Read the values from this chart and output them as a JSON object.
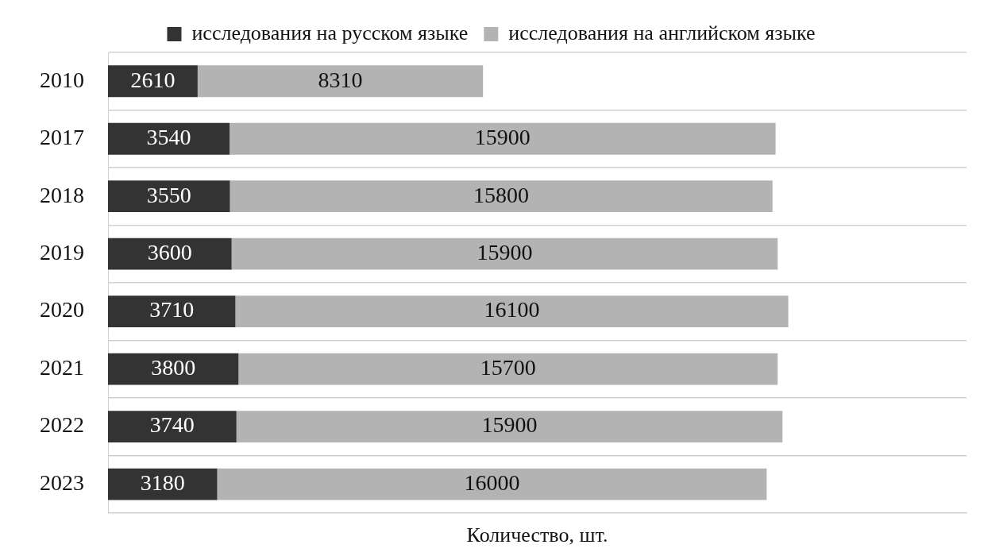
{
  "chart_data": {
    "type": "bar",
    "orientation": "horizontal",
    "stacked": true,
    "xlabel": "Количество, шт.",
    "categories": [
      "2010",
      "2017",
      "2018",
      "2019",
      "2020",
      "2021",
      "2022",
      "2023"
    ],
    "series": [
      {
        "name": "исследования на русском языке",
        "color": "#333333",
        "values": [
          2610,
          3540,
          3550,
          3600,
          3710,
          3800,
          3740,
          3180
        ]
      },
      {
        "name": "исследования на английском языке",
        "color": "#b3b3b3",
        "values": [
          8310,
          15900,
          15800,
          15900,
          16100,
          15700,
          15900,
          16000
        ]
      }
    ],
    "xlim": [
      0,
      25000
    ],
    "tick_labels": "y",
    "grid": "y",
    "legend": "top",
    "data_labels": true
  }
}
